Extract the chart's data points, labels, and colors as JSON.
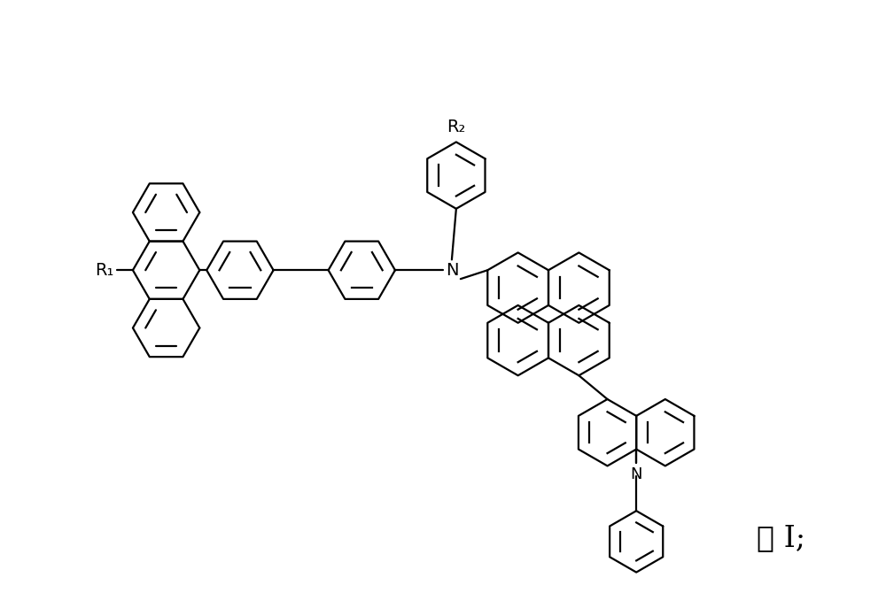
{
  "background_color": "#ffffff",
  "line_color": "#000000",
  "line_width": 1.6,
  "label_R1": "R₁",
  "label_R2": "R₂",
  "label_N_amine": "N",
  "label_N_carb": "N",
  "label_formula": "式 I;",
  "fig_width": 10.0,
  "fig_height": 6.7
}
